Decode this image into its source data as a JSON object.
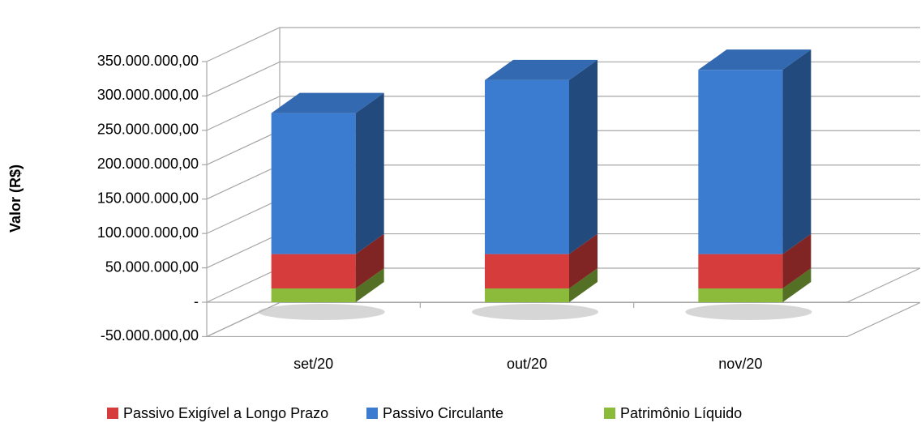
{
  "chart_data": {
    "type": "bar3d_stacked",
    "y_label": "Valor (R$)",
    "categories": [
      "set/20",
      "out/20",
      "nov/20"
    ],
    "series": [
      {
        "name": "Patrimônio Líquido",
        "color": "#8cbb3c",
        "values": [
          20000000,
          20000000,
          20000000
        ]
      },
      {
        "name": "Passivo Exigível a Longo Prazo",
        "color": "#d63c3c",
        "values": [
          50000000,
          50000000,
          50000000
        ]
      },
      {
        "name": "Passivo Circulante",
        "color": "#3b7bd0",
        "values": [
          205000000,
          253000000,
          268000000
        ]
      }
    ],
    "legend_order": [
      1,
      2,
      0
    ],
    "ylim": [
      -50000000,
      350000000
    ],
    "yticks": [
      {
        "value": -50000000,
        "label": "-50.000.000,00"
      },
      {
        "value": 0,
        "label": "-"
      },
      {
        "value": 50000000,
        "label": "50.000.000,00"
      },
      {
        "value": 100000000,
        "label": "100.000.000,00"
      },
      {
        "value": 150000000,
        "label": "150.000.000,00"
      },
      {
        "value": 200000000,
        "label": "200.000.000,00"
      },
      {
        "value": 250000000,
        "label": "250.000.000,00"
      },
      {
        "value": 300000000,
        "label": "300.000.000,00"
      },
      {
        "value": 350000000,
        "label": "350.000.000,00"
      }
    ],
    "grid": true
  }
}
